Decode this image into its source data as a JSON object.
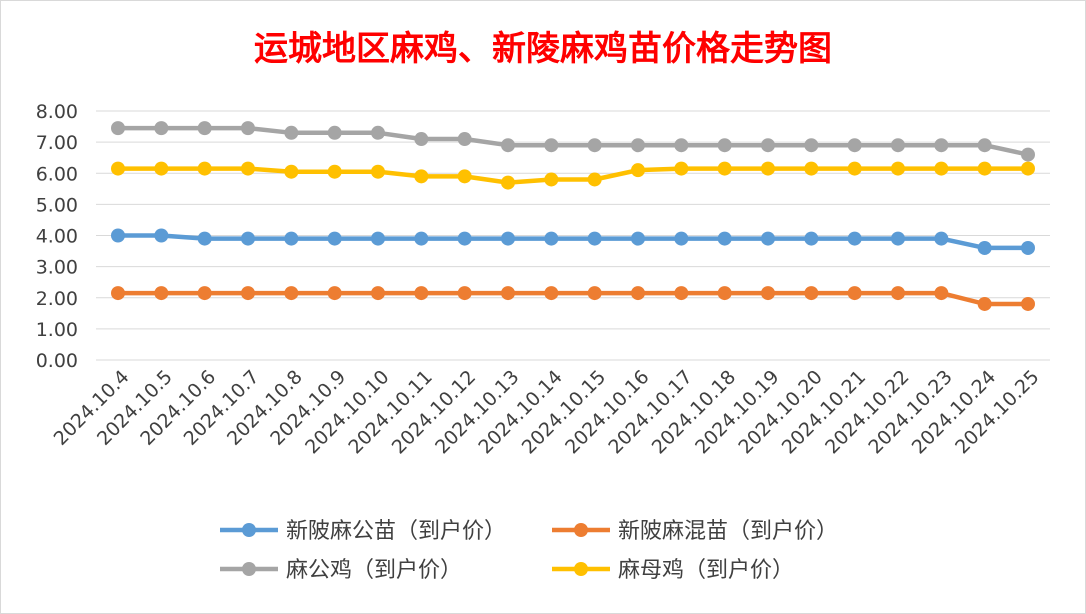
{
  "chart_data": {
    "type": "line",
    "title": "运城地区麻鸡、新陵麻鸡苗价格走势图",
    "title_color": "#ff0000",
    "xlabel": "",
    "ylabel": "",
    "ylim": [
      0,
      8
    ],
    "y_ticks": [
      "0.00",
      "1.00",
      "2.00",
      "3.00",
      "4.00",
      "5.00",
      "6.00",
      "7.00",
      "8.00"
    ],
    "grid": true,
    "legend_position": "bottom",
    "categories": [
      "2024.10.4",
      "2024.10.5",
      "2024.10.6",
      "2024.10.7",
      "2024.10.8",
      "2024.10.9",
      "2024.10.10",
      "2024.10.11",
      "2024.10.12",
      "2024.10.13",
      "2024.10.14",
      "2024.10.15",
      "2024.10.16",
      "2024.10.17",
      "2024.10.18",
      "2024.10.19",
      "2024.10.20",
      "2024.10.21",
      "2024.10.22",
      "2024.10.23",
      "2024.10.24",
      "2024.10.25"
    ],
    "series": [
      {
        "name": "新陂麻公苗（到户价）",
        "color": "#5b9bd5",
        "values": [
          4.0,
          4.0,
          3.9,
          3.9,
          3.9,
          3.9,
          3.9,
          3.9,
          3.9,
          3.9,
          3.9,
          3.9,
          3.9,
          3.9,
          3.9,
          3.9,
          3.9,
          3.9,
          3.9,
          3.9,
          3.6,
          3.6
        ]
      },
      {
        "name": "新陂麻混苗（到户价）",
        "color": "#ed7d31",
        "values": [
          2.15,
          2.15,
          2.15,
          2.15,
          2.15,
          2.15,
          2.15,
          2.15,
          2.15,
          2.15,
          2.15,
          2.15,
          2.15,
          2.15,
          2.15,
          2.15,
          2.15,
          2.15,
          2.15,
          2.15,
          1.8,
          1.8
        ]
      },
      {
        "name": "麻公鸡（到户价）",
        "color": "#a5a5a5",
        "values": [
          7.45,
          7.45,
          7.45,
          7.45,
          7.3,
          7.3,
          7.3,
          7.1,
          7.1,
          6.9,
          6.9,
          6.9,
          6.9,
          6.9,
          6.9,
          6.9,
          6.9,
          6.9,
          6.9,
          6.9,
          6.9,
          6.6
        ]
      },
      {
        "name": "麻母鸡（到户价）",
        "color": "#ffc000",
        "values": [
          6.15,
          6.15,
          6.15,
          6.15,
          6.05,
          6.05,
          6.05,
          5.9,
          5.9,
          5.7,
          5.8,
          5.8,
          6.1,
          6.15,
          6.15,
          6.15,
          6.15,
          6.15,
          6.15,
          6.15,
          6.15,
          6.15
        ]
      }
    ]
  }
}
